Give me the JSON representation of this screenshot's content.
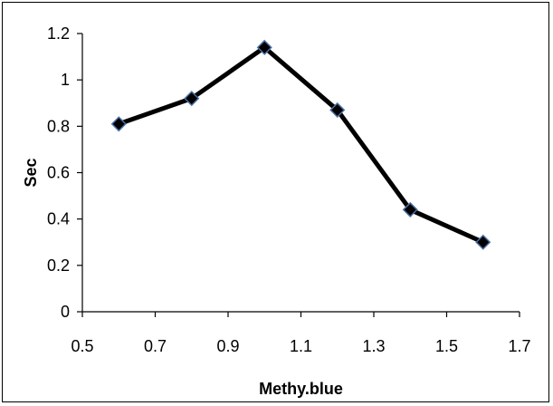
{
  "chart_data": {
    "type": "scatter",
    "title": "",
    "xlabel": "Methy.blue",
    "ylabel": "Sec",
    "xlim": [
      0.5,
      1.7
    ],
    "ylim": [
      0,
      1.2
    ],
    "x_ticks": [
      "0.5",
      "0.7",
      "0.9",
      "1.1",
      "1.3",
      "1.5",
      "1.7"
    ],
    "y_ticks": [
      "0",
      "0.2",
      "0.4",
      "0.6",
      "0.8",
      "1",
      "1.2"
    ],
    "grid": false,
    "legend": "none",
    "series": [
      {
        "x": [
          0.6,
          0.8,
          1.0,
          1.2,
          1.4,
          1.6
        ],
        "y": [
          0.81,
          0.92,
          1.14,
          0.87,
          0.44,
          0.3
        ],
        "line_color": "#000000",
        "marker": "diamond",
        "marker_fill": "#000000",
        "marker_edge": "#4a6fa5"
      }
    ]
  }
}
